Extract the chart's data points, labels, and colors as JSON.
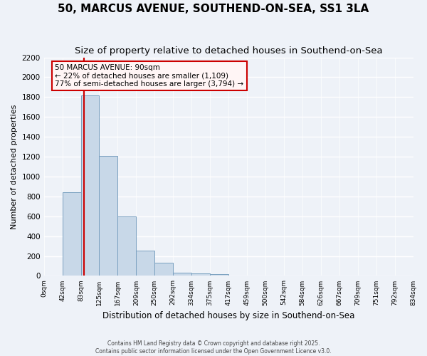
{
  "title": "50, MARCUS AVENUE, SOUTHEND-ON-SEA, SS1 3LA",
  "subtitle": "Size of property relative to detached houses in Southend-on-Sea",
  "xlabel": "Distribution of detached houses by size in Southend-on-Sea",
  "ylabel": "Number of detached properties",
  "footer_line1": "Contains HM Land Registry data © Crown copyright and database right 2025.",
  "footer_line2": "Contains public sector information licensed under the Open Government Licence v3.0.",
  "bin_labels": [
    "0sqm",
    "42sqm",
    "83sqm",
    "125sqm",
    "167sqm",
    "209sqm",
    "250sqm",
    "292sqm",
    "334sqm",
    "375sqm",
    "417sqm",
    "459sqm",
    "500sqm",
    "542sqm",
    "584sqm",
    "626sqm",
    "667sqm",
    "709sqm",
    "751sqm",
    "792sqm",
    "834sqm"
  ],
  "bar_values": [
    0,
    840,
    1820,
    1210,
    600,
    255,
    130,
    30,
    25,
    15,
    5,
    0,
    0,
    5,
    0,
    0,
    0,
    0,
    0,
    0
  ],
  "bar_color": "#c8d8e8",
  "bar_edge_color": "#7aa0c0",
  "ylim": [
    0,
    2200
  ],
  "yticks": [
    0,
    200,
    400,
    600,
    800,
    1000,
    1200,
    1400,
    1600,
    1800,
    2000,
    2200
  ],
  "property_label": "50 MARCUS AVENUE: 90sqm",
  "annotation_line1": "← 22% of detached houses are smaller (1,109)",
  "annotation_line2": "77% of semi-detached houses are larger (3,794) →",
  "annotation_box_color": "#fff5f5",
  "annotation_box_edge": "#cc0000",
  "vline_color": "#cc0000",
  "bg_color": "#eef2f8",
  "grid_color": "#ffffff",
  "title_fontsize": 11,
  "subtitle_fontsize": 9.5
}
